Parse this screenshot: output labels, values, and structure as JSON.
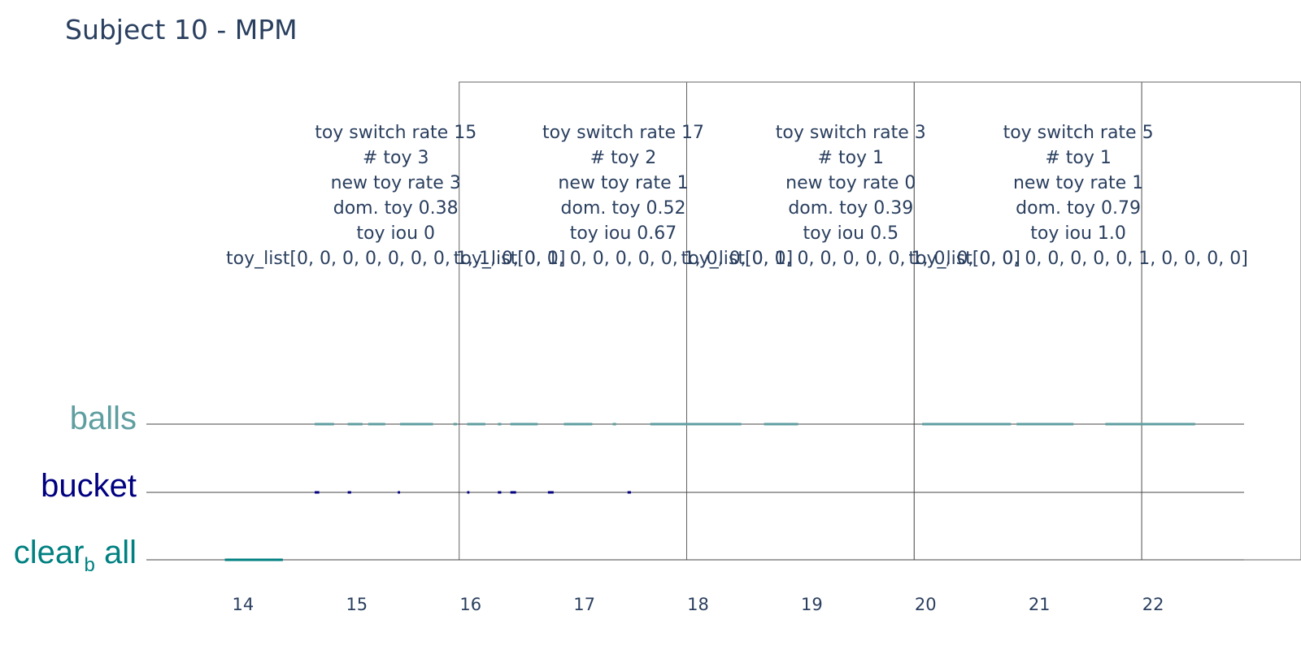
{
  "chart_data": {
    "type": "timeline",
    "title": "Subject 10 - MPM",
    "xlim": [
      13.15,
      22.8
    ],
    "x_ticks": [
      14,
      15,
      16,
      17,
      18,
      19,
      20,
      21,
      22
    ],
    "categories": [
      {
        "id": "balls",
        "label": "balls",
        "color": "#5f9ea0"
      },
      {
        "id": "bucket",
        "label": "bucket",
        "color": "#000080"
      },
      {
        "id": "clear",
        "label": "clear",
        "subscript": "b",
        "suffix": "all",
        "color": "#008080"
      }
    ],
    "segments": {
      "balls": [
        [
          14.63,
          14.8
        ],
        [
          14.92,
          15.05
        ],
        [
          15.1,
          15.25
        ],
        [
          15.38,
          15.67
        ],
        [
          15.85,
          15.88
        ],
        [
          15.97,
          16.13
        ],
        [
          16.24,
          16.27
        ],
        [
          16.35,
          16.59
        ],
        [
          16.82,
          17.07
        ],
        [
          17.25,
          17.28
        ],
        [
          17.58,
          18.38
        ],
        [
          18.58,
          18.88
        ],
        [
          19.97,
          20.75
        ],
        [
          20.8,
          21.3
        ],
        [
          21.58,
          22.37
        ]
      ],
      "bucket": [
        [
          14.63,
          14.67
        ],
        [
          14.92,
          14.95
        ],
        [
          15.36,
          15.38
        ],
        [
          15.97,
          15.99
        ],
        [
          16.24,
          16.27
        ],
        [
          16.35,
          16.4
        ],
        [
          16.68,
          16.73
        ],
        [
          17.38,
          17.41
        ]
      ],
      "clear": [
        [
          13.84,
          14.35
        ]
      ]
    },
    "windows": [
      {
        "start": 15.9,
        "end": 17.9,
        "annotation": [
          "toy switch rate 15",
          "# toy 3",
          "new toy rate 3",
          "dom. toy 0.38",
          "toy iou 0",
          "toy_list[0, 0, 0, 0, 0, 0, 0, 1, 1, 0, 0, 1]"
        ]
      },
      {
        "start": 17.9,
        "end": 19.9,
        "annotation": [
          "toy switch rate 17",
          "# toy 2",
          "new toy rate 1",
          "dom. toy 0.52",
          "toy iou 0.67",
          "toy_list[0, 0, 0, 0, 0, 0, 0, 1, 0, 0, 0, 1]"
        ]
      },
      {
        "start": 19.9,
        "end": 21.9,
        "annotation": [
          "toy switch rate 3",
          "# toy 1",
          "new toy rate 0",
          "dom. toy 0.39",
          "toy iou 0.5",
          "toy_list[0, 0, 0, 0, 0, 0, 0, 1, 0, 0, 0, 0]"
        ]
      },
      {
        "start": 21.9,
        "end": 23.9,
        "annotation": [
          "toy switch rate 5",
          "# toy 1",
          "new toy rate 1",
          "dom. toy 0.79",
          "toy iou 1.0",
          "toy_list[0, 0, 0, 0, 0, 0, 0, 1, 0, 0, 0, 0]"
        ]
      }
    ]
  }
}
